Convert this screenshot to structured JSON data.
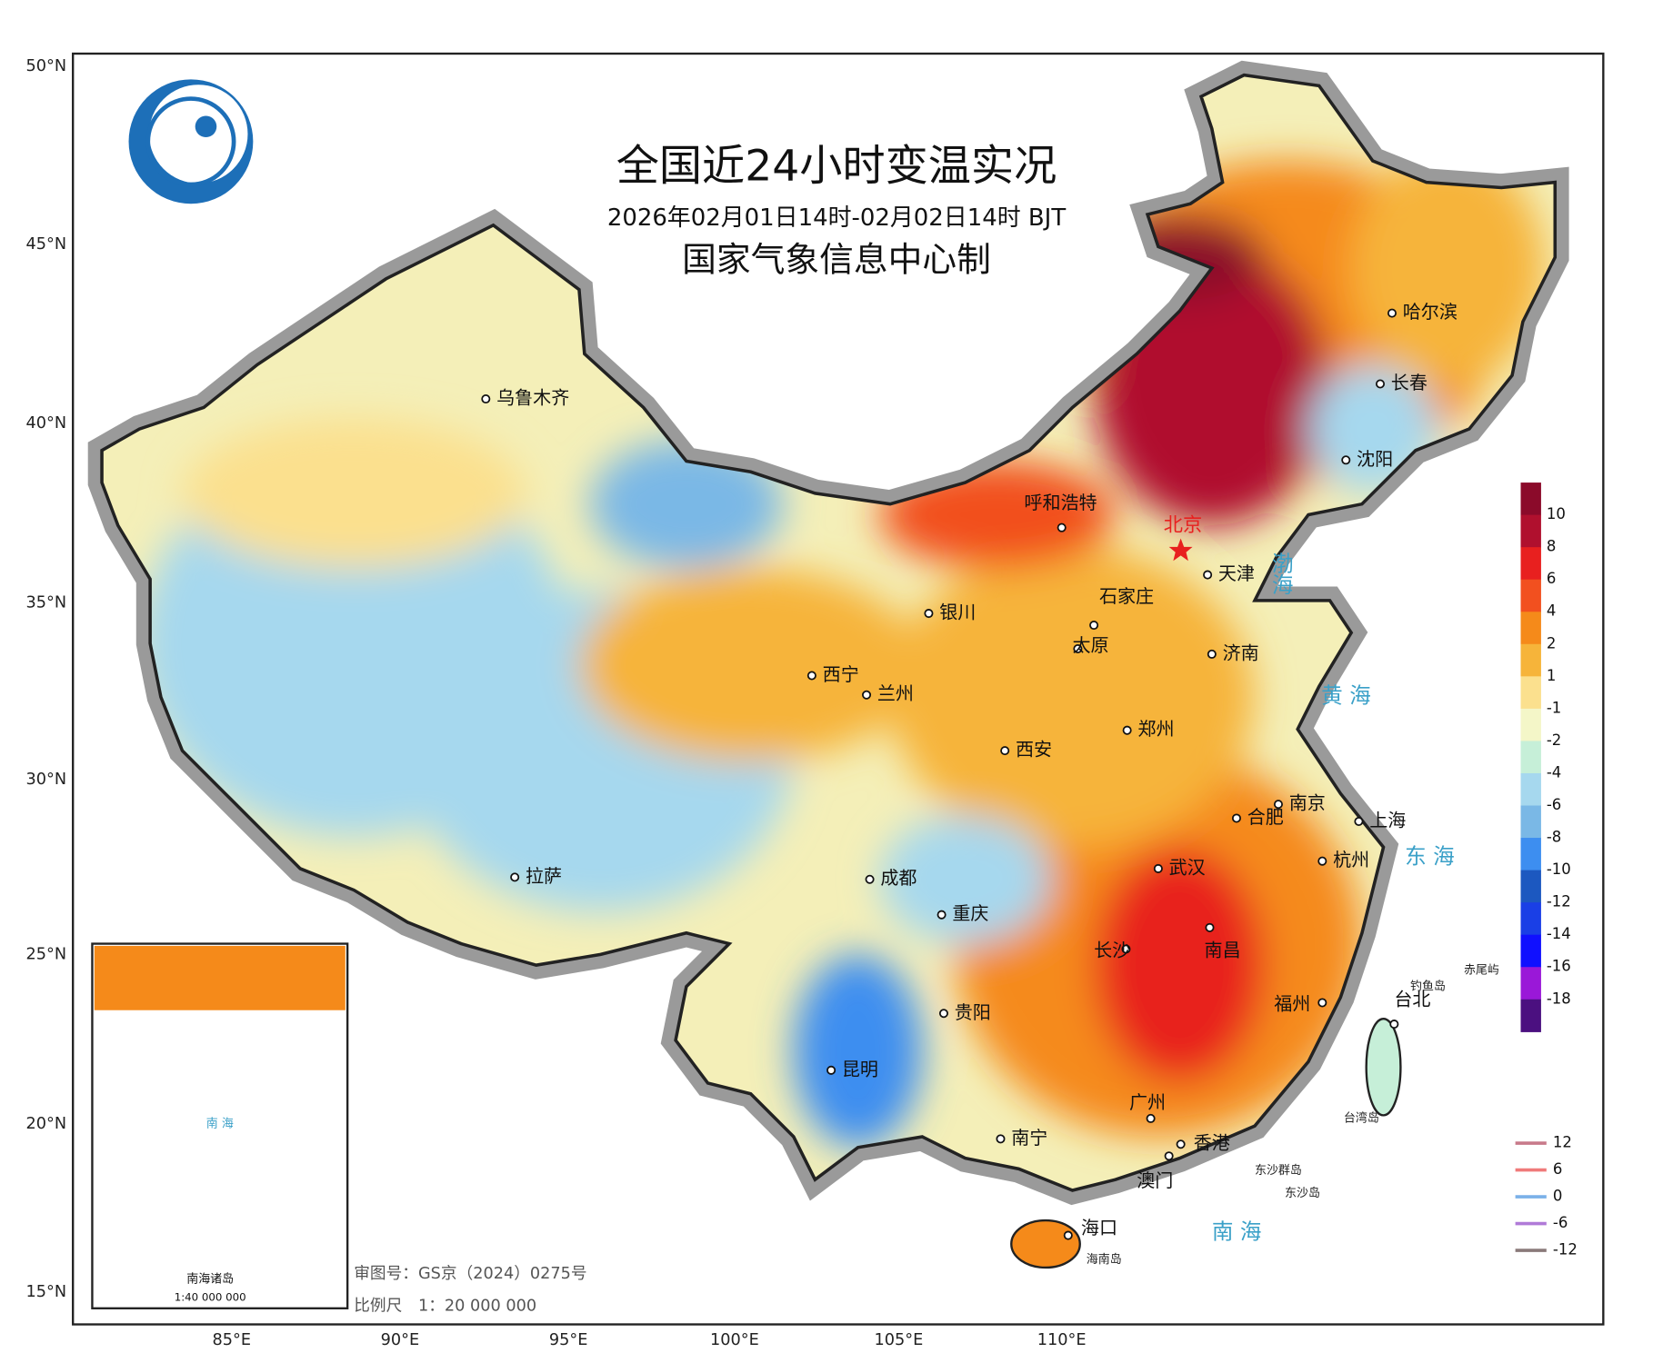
{
  "header": {
    "title": "全国近24小时变温实况",
    "subtitle": "2026年02月01日14时-02月02日14时 BJT",
    "agency": "国家气象信息中心制"
  },
  "lat_labels": [
    "50°N",
    "45°N",
    "40°N",
    "35°N",
    "30°N",
    "25°N",
    "20°N",
    "15°N"
  ],
  "lon_labels": [
    "85°E",
    "90°E",
    "95°E",
    "100°E",
    "105°E",
    "110°E"
  ],
  "capital": "北京",
  "cities": [
    "乌鲁木齐",
    "呼和浩特",
    "天津",
    "石家庄",
    "银川",
    "太原",
    "济南",
    "西宁",
    "兰州",
    "西安",
    "郑州",
    "合肥",
    "南京",
    "上海",
    "拉萨",
    "成都",
    "武汉",
    "杭州",
    "重庆",
    "长沙",
    "南昌",
    "福州",
    "贵阳",
    "昆明",
    "台北",
    "广州",
    "南宁",
    "香港",
    "澳门",
    "海口",
    "哈尔滨",
    "长春",
    "沈阳"
  ],
  "seas": [
    "渤海",
    "黄 海",
    "东 海",
    "南 海"
  ],
  "islands": [
    "钓鱼岛",
    "赤尾屿",
    "台湾岛",
    "海南岛",
    "东沙群岛",
    "东沙岛"
  ],
  "colorbar": {
    "colors": [
      "#8b0a2a",
      "#b0102e",
      "#e8201f",
      "#f2501f",
      "#f58a1a",
      "#f6b43a",
      "#fbe08e",
      "#f4f6c8",
      "#c6efd8",
      "#a6d8ee",
      "#7ab8e6",
      "#3d8ef0",
      "#1c58c0",
      "#1a3fe6",
      "#1010ff",
      "#9a18d8",
      "#4b1080"
    ],
    "labels": [
      10,
      8,
      6,
      4,
      2,
      1,
      -1,
      -2,
      -4,
      -6,
      -8,
      -10,
      -12,
      -14,
      -16,
      -18
    ]
  },
  "boundary_legend": [
    {
      "label": 12,
      "color": "#c87a8a"
    },
    {
      "label": 6,
      "color": "#f07a7a"
    },
    {
      "label": 0,
      "color": "#7ab0e8"
    },
    {
      "label": -6,
      "color": "#b07ad8"
    },
    {
      "label": -12,
      "color": "#8a7a7a"
    }
  ],
  "inset": {
    "title": "南海诸岛",
    "scale": "1:40 000 000",
    "sea": "南 海"
  },
  "footer": {
    "approval": "审图号：GS京（2024）0275号",
    "scale": "比例尺　1：20 000 000"
  }
}
